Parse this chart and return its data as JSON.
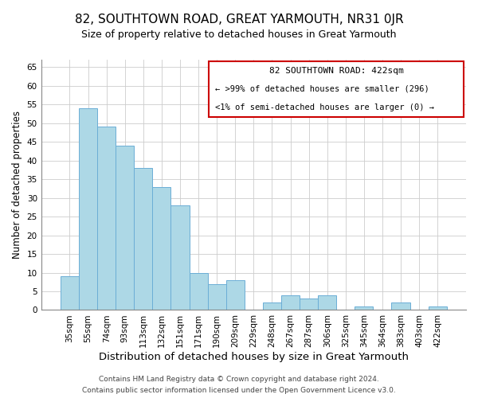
{
  "title": "82, SOUTHTOWN ROAD, GREAT YARMOUTH, NR31 0JR",
  "subtitle": "Size of property relative to detached houses in Great Yarmouth",
  "xlabel": "Distribution of detached houses by size in Great Yarmouth",
  "ylabel": "Number of detached properties",
  "bar_labels": [
    "35sqm",
    "55sqm",
    "74sqm",
    "93sqm",
    "113sqm",
    "132sqm",
    "151sqm",
    "171sqm",
    "190sqm",
    "209sqm",
    "229sqm",
    "248sqm",
    "267sqm",
    "287sqm",
    "306sqm",
    "325sqm",
    "345sqm",
    "364sqm",
    "383sqm",
    "403sqm",
    "422sqm"
  ],
  "bar_values": [
    9,
    54,
    49,
    44,
    38,
    33,
    28,
    10,
    7,
    8,
    0,
    2,
    4,
    3,
    4,
    0,
    1,
    0,
    2,
    0,
    1
  ],
  "bar_color": "#add8e6",
  "bar_edge_color": "#6baed6",
  "ylim": [
    0,
    67
  ],
  "yticks": [
    0,
    5,
    10,
    15,
    20,
    25,
    30,
    35,
    40,
    45,
    50,
    55,
    60,
    65
  ],
  "annotation_box_title": "82 SOUTHTOWN ROAD: 422sqm",
  "annotation_line1": "← >99% of detached houses are smaller (296)",
  "annotation_line2": "<1% of semi-detached houses are larger (0) →",
  "annotation_box_edge_color": "#cc0000",
  "footer_line1": "Contains HM Land Registry data © Crown copyright and database right 2024.",
  "footer_line2": "Contains public sector information licensed under the Open Government Licence v3.0.",
  "title_fontsize": 11,
  "subtitle_fontsize": 9,
  "xlabel_fontsize": 9.5,
  "ylabel_fontsize": 8.5,
  "tick_fontsize": 7.5,
  "footer_fontsize": 6.5,
  "annotation_title_fontsize": 8,
  "annotation_text_fontsize": 7.5
}
